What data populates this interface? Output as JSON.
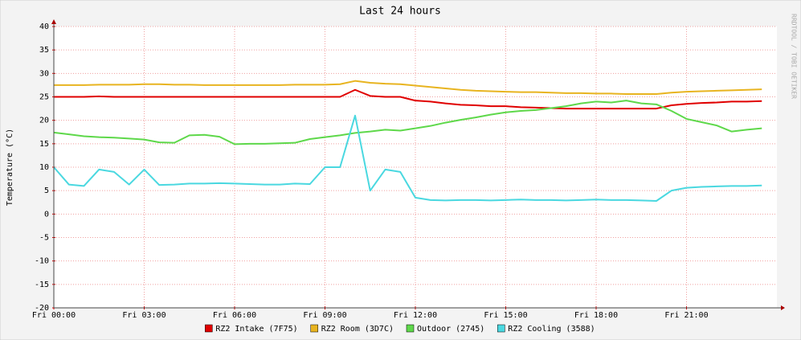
{
  "chart_data": {
    "type": "line",
    "title": "Last 24 hours",
    "y_label": "Temperature (°C)",
    "watermark": "RRDTOOL / TOBI OETIKER",
    "x": [
      0,
      0.5,
      1,
      1.5,
      2,
      2.5,
      3,
      3.5,
      4,
      4.5,
      5,
      5.5,
      6,
      6.5,
      7,
      7.5,
      8,
      8.5,
      9,
      9.5,
      10,
      10.5,
      11,
      11.5,
      12,
      12.5,
      13,
      13.5,
      14,
      14.5,
      15,
      15.5,
      16,
      16.5,
      17,
      17.5,
      18,
      18.5,
      19,
      19.5,
      20,
      20.5,
      21,
      21.5,
      22,
      22.5,
      23,
      23.5
    ],
    "xlim": [
      0,
      24
    ],
    "xticks": [
      {
        "value": 0,
        "label": "Fri 00:00"
      },
      {
        "value": 3,
        "label": "Fri 03:00"
      },
      {
        "value": 6,
        "label": "Fri 06:00"
      },
      {
        "value": 9,
        "label": "Fri 09:00"
      },
      {
        "value": 12,
        "label": "Fri 12:00"
      },
      {
        "value": 15,
        "label": "Fri 15:00"
      },
      {
        "value": 18,
        "label": "Fri 18:00"
      },
      {
        "value": 21,
        "label": "Fri 21:00"
      }
    ],
    "ylim": [
      -20,
      40
    ],
    "yticks": [
      -20,
      -15,
      -10,
      -5,
      0,
      5,
      10,
      15,
      20,
      25,
      30,
      35,
      40
    ],
    "grid": true,
    "series": [
      {
        "name": "RZ2 Intake (7F75)",
        "color": "#e00000",
        "values": [
          25,
          25,
          25,
          25.1,
          25,
          25,
          25,
          25,
          25,
          25,
          25,
          25,
          25,
          25,
          25,
          25,
          25,
          25,
          25,
          25,
          26.5,
          25.2,
          25,
          25,
          24.2,
          24,
          23.6,
          23.3,
          23.2,
          23,
          23,
          22.8,
          22.7,
          22.6,
          22.5,
          22.5,
          22.5,
          22.5,
          22.5,
          22.5,
          22.5,
          23.2,
          23.5,
          23.7,
          23.8,
          24,
          24,
          24.1
        ]
      },
      {
        "name": "RZ2 Room (3D7C)",
        "color": "#e8b420",
        "values": [
          27.5,
          27.5,
          27.5,
          27.6,
          27.6,
          27.6,
          27.7,
          27.7,
          27.6,
          27.6,
          27.5,
          27.5,
          27.5,
          27.5,
          27.5,
          27.5,
          27.6,
          27.6,
          27.6,
          27.7,
          28.4,
          28,
          27.8,
          27.7,
          27.4,
          27.1,
          26.8,
          26.5,
          26.3,
          26.2,
          26.1,
          26,
          26,
          25.9,
          25.8,
          25.8,
          25.7,
          25.7,
          25.6,
          25.6,
          25.6,
          25.9,
          26.1,
          26.2,
          26.3,
          26.4,
          26.5,
          26.6
        ]
      },
      {
        "name": "Outdoor (2745)",
        "color": "#5ed84a",
        "values": [
          17.4,
          17,
          16.6,
          16.4,
          16.3,
          16.1,
          15.9,
          15.3,
          15.2,
          16.8,
          16.9,
          16.5,
          14.9,
          15,
          15,
          15.1,
          15.2,
          16,
          16.4,
          16.8,
          17.3,
          17.6,
          18,
          17.8,
          18.3,
          18.8,
          19.5,
          20.1,
          20.6,
          21.2,
          21.7,
          22,
          22.2,
          22.6,
          23,
          23.6,
          24,
          23.8,
          24.2,
          23.6,
          23.4,
          22,
          20.3,
          19.6,
          18.9,
          17.6,
          18,
          18.3
        ]
      },
      {
        "name": "RZ2 Cooling (3588)",
        "color": "#4ad8e0",
        "values": [
          10,
          6.3,
          6,
          9.5,
          9,
          6.3,
          9.5,
          6.2,
          6.3,
          6.5,
          6.5,
          6.6,
          6.5,
          6.4,
          6.3,
          6.3,
          6.5,
          6.4,
          10,
          10,
          21,
          5,
          9.5,
          9,
          3.5,
          3,
          2.9,
          3,
          3,
          2.9,
          3,
          3.1,
          3,
          3,
          2.9,
          3,
          3.1,
          3,
          3,
          2.9,
          2.8,
          5,
          5.6,
          5.8,
          5.9,
          6,
          6,
          6.1
        ]
      }
    ]
  }
}
